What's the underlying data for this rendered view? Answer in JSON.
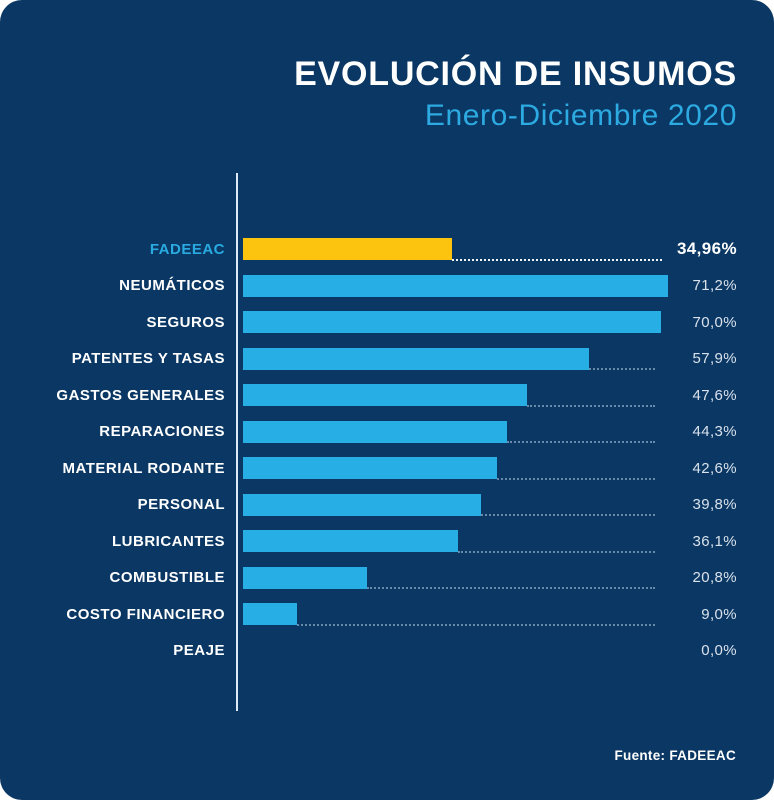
{
  "title": "EVOLUCIÓN DE INSUMOS",
  "subtitle": "Enero-Diciembre 2020",
  "source": "Fuente: FADEEAC",
  "colors": {
    "background": "#0a3763",
    "bar": "#27aee4",
    "highlight_bar": "#fcc40e",
    "category_label": "#ffffff",
    "highlight_category_label": "#29abe2",
    "value_label": "#d9e2ec",
    "highlight_value_label": "#ffffff",
    "axis_line": "#dceaf5",
    "title_color": "#ffffff",
    "subtitle_color": "#2caae1"
  },
  "chart_data": {
    "type": "bar",
    "orientation": "horizontal",
    "title": "EVOLUCIÓN DE INSUMOS",
    "subtitle": "Enero-Diciembre 2020",
    "categories": [
      "FADEEAC",
      "NEUMÁTICOS",
      "SEGUROS",
      "PATENTES Y TASAS",
      "GASTOS GENERALES",
      "REPARACIONES",
      "MATERIAL RODANTE",
      "PERSONAL",
      "LUBRICANTES",
      "COMBUSTIBLE",
      "COSTO FINANCIERO",
      "PEAJE"
    ],
    "values": [
      34.96,
      71.2,
      70.0,
      57.9,
      47.6,
      44.3,
      42.6,
      39.8,
      36.1,
      20.8,
      9.0,
      0.0
    ],
    "value_labels": [
      "34,96%",
      "71,2%",
      "70,0%",
      "57,9%",
      "47,6%",
      "44,3%",
      "42,6%",
      "39,8%",
      "36,1%",
      "20,8%",
      "9,0%",
      "0,0%"
    ],
    "highlight_index": 0,
    "xlim": [
      0,
      71.2
    ],
    "xlabel": "",
    "ylabel": "",
    "grid": false,
    "legend": false,
    "annotations": [
      "Fuente: FADEEAC"
    ]
  }
}
